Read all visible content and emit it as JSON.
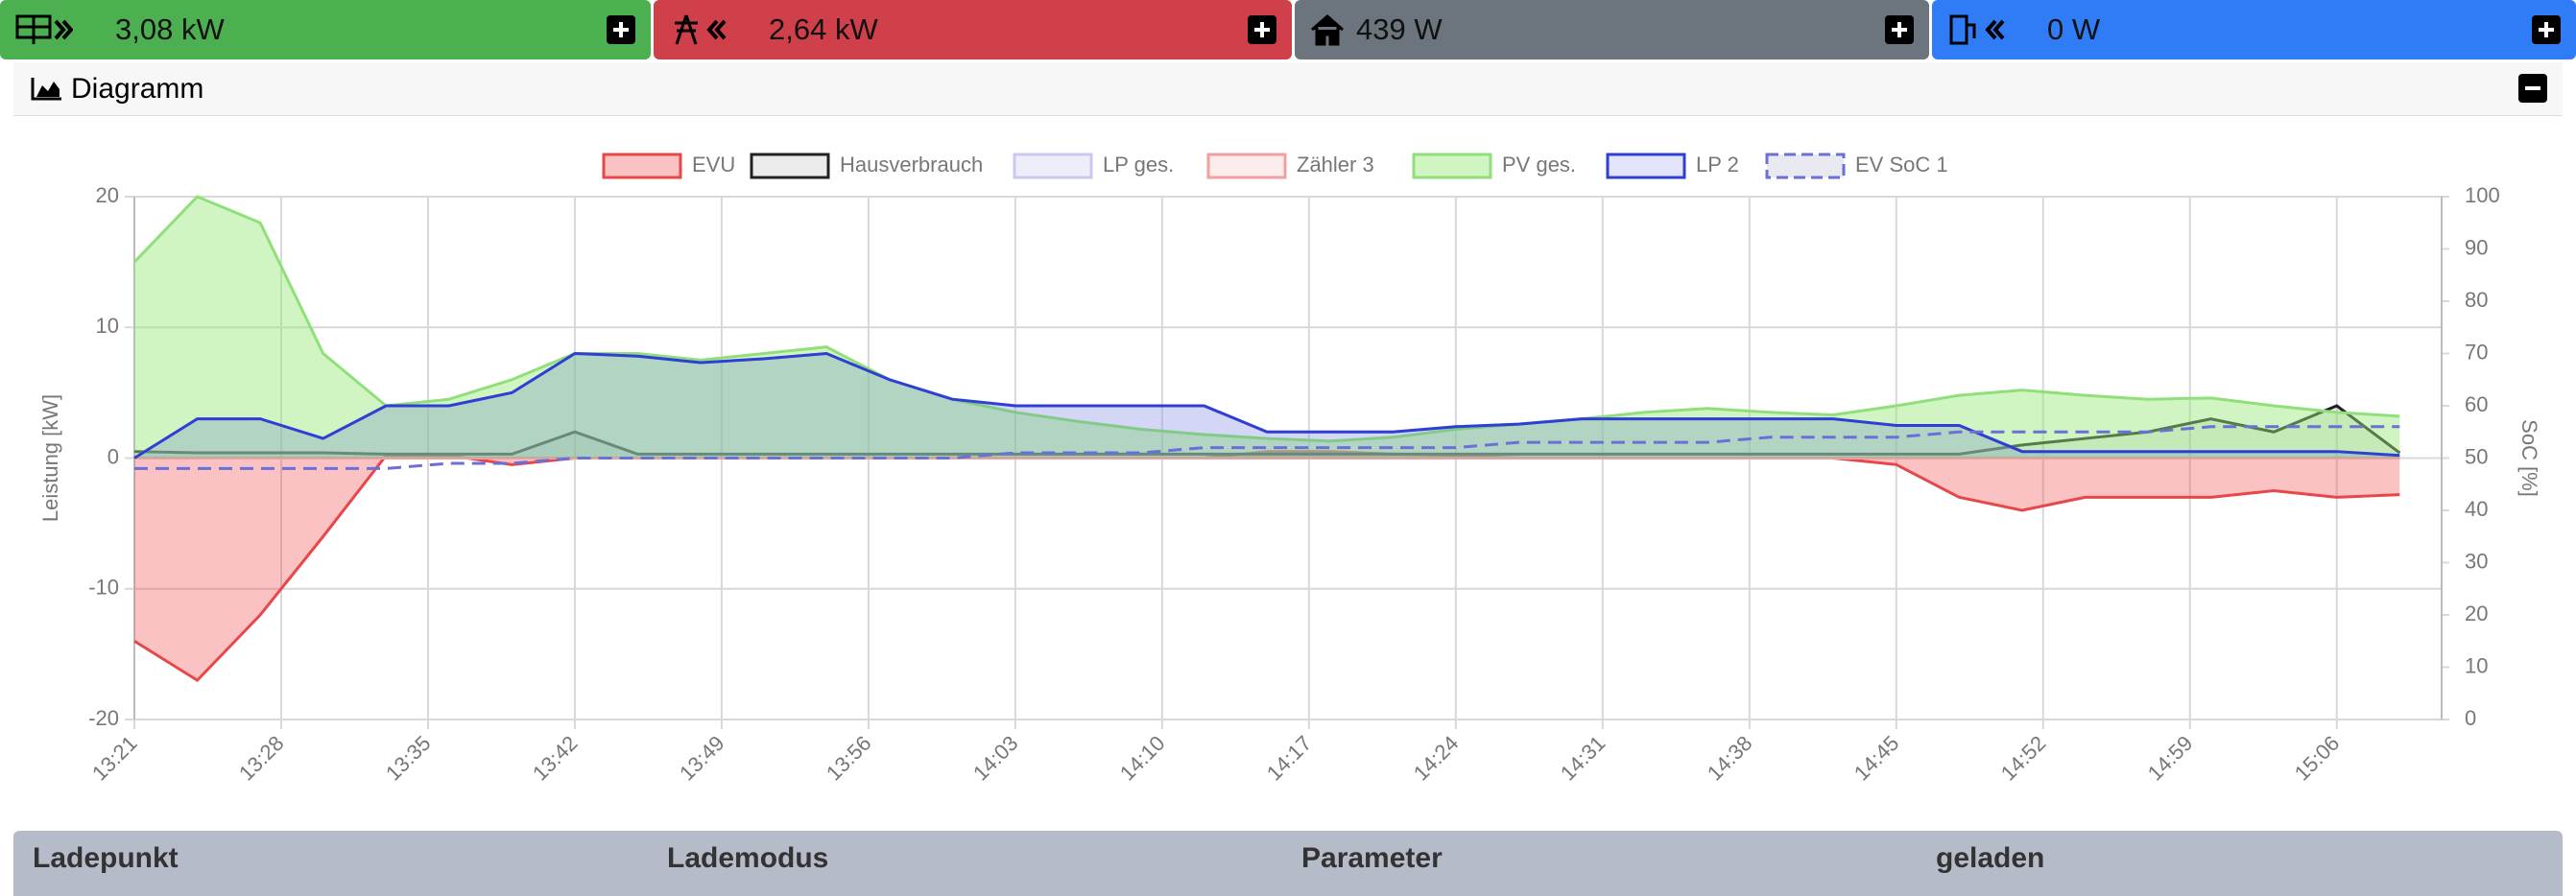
{
  "status_tiles": [
    {
      "value": "3,08 kW"
    },
    {
      "value": "2,64 kW"
    },
    {
      "value": "439 W"
    },
    {
      "value": "0 W"
    }
  ],
  "panel": {
    "title": "Diagramm"
  },
  "chart_data": {
    "type": "line",
    "ylabel": "Leistung [kW]",
    "y2label": "SoC [%]",
    "x": [
      "13:21",
      "13:24",
      "13:27",
      "13:30",
      "13:33",
      "13:36",
      "13:39",
      "13:42",
      "13:45",
      "13:48",
      "13:51",
      "13:54",
      "13:57",
      "14:00",
      "14:03",
      "14:06",
      "14:09",
      "14:12",
      "14:15",
      "14:18",
      "14:21",
      "14:24",
      "14:27",
      "14:30",
      "14:33",
      "14:36",
      "14:39",
      "14:42",
      "14:45",
      "14:48",
      "14:51",
      "14:54",
      "14:57",
      "15:00",
      "15:03",
      "15:06",
      "15:09"
    ],
    "xlim": [
      "13:21",
      "15:11"
    ],
    "xticks": [
      "13:21",
      "13:28",
      "13:35",
      "13:42",
      "13:49",
      "13:56",
      "14:03",
      "14:10",
      "14:17",
      "14:24",
      "14:31",
      "14:38",
      "14:45",
      "14:52",
      "14:59",
      "15:06"
    ],
    "ylim": [
      -20,
      20
    ],
    "yticks": [
      -20,
      -10,
      0,
      10,
      20
    ],
    "y2lim": [
      0,
      100
    ],
    "y2ticks": [
      0,
      10,
      20,
      30,
      40,
      50,
      60,
      70,
      80,
      90,
      100
    ],
    "grid": true,
    "legend": "top",
    "series": [
      {
        "name": "EVU",
        "color": "#e8474a",
        "fill": "rgba(240,80,80,0.35)",
        "values": [
          -14,
          -17,
          -12,
          -6,
          0.2,
          0.2,
          -0.5,
          0,
          0,
          0,
          0,
          0,
          0,
          0,
          0,
          0,
          0,
          0,
          0.5,
          0.5,
          0.3,
          0.2,
          0,
          0,
          0,
          0,
          0,
          0,
          -0.5,
          -3,
          -4,
          -3,
          -3,
          -3,
          -2.5,
          -3,
          -2.8
        ]
      },
      {
        "name": "Hausverbrauch",
        "color": "#222222",
        "fill": "rgba(120,120,120,0.15)",
        "values": [
          0.5,
          0.4,
          0.4,
          0.4,
          0.3,
          0.3,
          0.3,
          2,
          0.3,
          0.3,
          0.3,
          0.3,
          0.3,
          0.3,
          0.3,
          0.3,
          0.3,
          0.3,
          0.3,
          0.3,
          0.3,
          0.3,
          0.3,
          0.3,
          0.3,
          0.3,
          0.3,
          0.3,
          0.3,
          0.3,
          1,
          1.5,
          2,
          3,
          2,
          4,
          0.4
        ]
      },
      {
        "name": "LP ges.",
        "color": "#c8c8f0",
        "fill": "rgba(200,200,240,0.3)",
        "values": [
          0,
          3,
          3,
          1.5,
          4,
          4,
          5,
          8,
          7.8,
          7.3,
          7.6,
          8,
          6,
          4.5,
          4,
          4,
          4,
          4,
          2,
          2,
          2,
          2.4,
          2.6,
          3,
          3,
          3,
          3,
          3,
          2.5,
          2.5,
          0.5,
          0.5,
          0.5,
          0.5,
          0.5,
          0.5,
          0.2
        ]
      },
      {
        "name": "Zähler 3",
        "color": "#f0a0a0",
        "fill": "rgba(250,200,200,0.35)",
        "values": [
          0,
          0,
          0,
          0,
          0,
          0,
          0,
          0,
          0,
          0,
          0,
          0,
          0,
          0,
          0,
          0,
          0,
          0,
          0,
          0,
          0,
          0,
          0,
          0,
          0,
          0,
          0,
          0,
          0,
          0,
          0,
          0,
          0,
          0,
          0,
          0,
          0
        ]
      },
      {
        "name": "PV ges.",
        "color": "#8fe07a",
        "fill": "rgba(150,230,120,0.45)",
        "values": [
          15,
          20,
          18,
          8,
          4,
          4.5,
          6,
          8,
          8,
          7.5,
          8,
          8.5,
          6,
          4.5,
          3.5,
          2.8,
          2.2,
          1.8,
          1.5,
          1.3,
          1.6,
          2.2,
          2.6,
          3,
          3.5,
          3.8,
          3.5,
          3.3,
          4,
          4.8,
          5.2,
          4.8,
          4.5,
          4.6,
          4,
          3.5,
          3.2
        ]
      },
      {
        "name": "LP 2",
        "color": "#2f3fd6",
        "fill": "rgba(60,80,220,0.15)",
        "values": [
          0,
          3,
          3,
          1.5,
          4,
          4,
          5,
          8,
          7.8,
          7.3,
          7.6,
          8,
          6,
          4.5,
          4,
          4,
          4,
          4,
          2,
          2,
          2,
          2.4,
          2.6,
          3,
          3,
          3,
          3,
          3,
          2.5,
          2.5,
          0.5,
          0.5,
          0.5,
          0.5,
          0.5,
          0.5,
          0.2
        ]
      },
      {
        "name": "EV SoC 1",
        "color": "#6b6fd8",
        "axis": "y2",
        "dashed": true,
        "values": [
          48,
          48,
          48,
          48,
          48,
          49,
          49,
          50,
          50,
          50,
          50,
          50,
          50,
          50,
          51,
          51,
          51,
          52,
          52,
          52,
          52,
          52,
          53,
          53,
          53,
          53,
          54,
          54,
          54,
          55,
          55,
          55,
          55,
          56,
          56,
          56,
          56
        ]
      }
    ]
  },
  "table": {
    "headers": [
      "Ladepunkt",
      "Lademodus",
      "Parameter",
      "geladen"
    ]
  }
}
